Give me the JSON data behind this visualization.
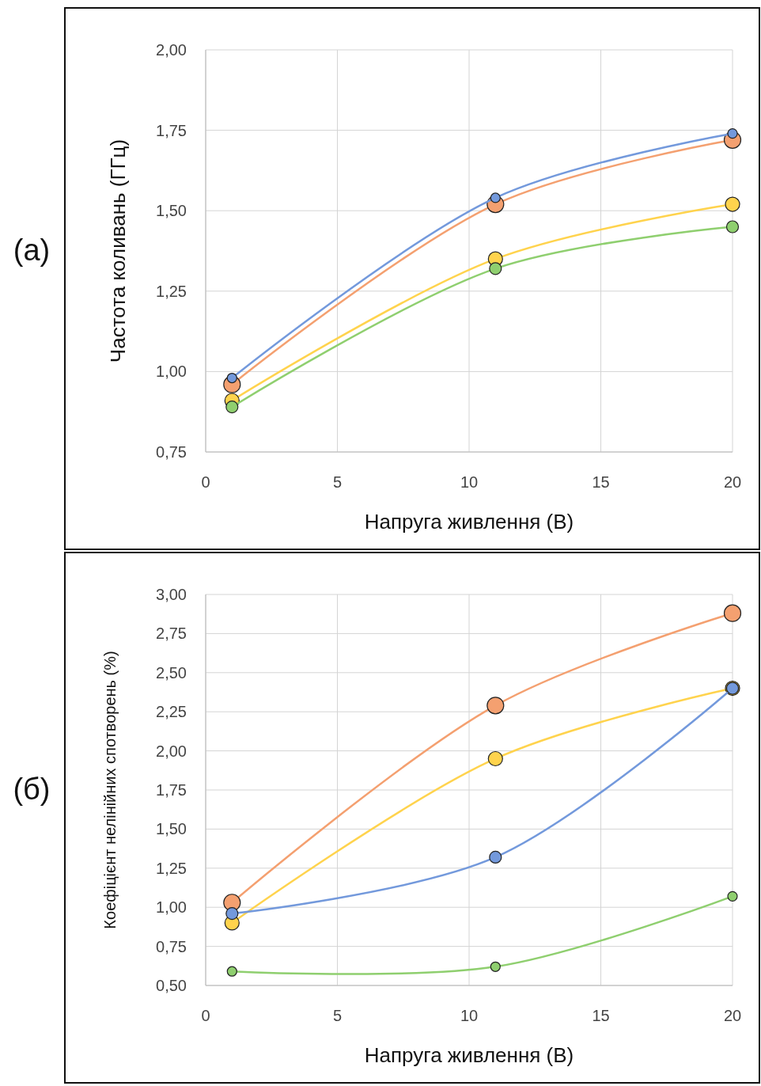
{
  "chart_data": [
    {
      "type": "line",
      "annotations": [
        "(а)"
      ],
      "xlabel": "Напруга живлення (В)",
      "ylabel": "Частота коливань (ГГц)",
      "x": [
        1,
        11,
        20
      ],
      "xlim": [
        0,
        20
      ],
      "xticks": [
        0,
        5,
        10,
        15,
        20
      ],
      "ylim": [
        0.75,
        2.0
      ],
      "yticks": [
        {
          "value": 0.75,
          "label": "0,75"
        },
        {
          "value": 1.0,
          "label": "1,00"
        },
        {
          "value": 1.25,
          "label": "1,25"
        },
        {
          "value": 1.5,
          "label": "1,50"
        },
        {
          "value": 1.75,
          "label": "1,75"
        },
        {
          "value": 2.0,
          "label": "2,00"
        }
      ],
      "grid": true,
      "marker": "circle",
      "line_style": "solid",
      "series": [
        {
          "color": "#f4a070",
          "values": [
            0.96,
            1.52,
            1.72
          ]
        },
        {
          "color": "#ffd34d",
          "values": [
            0.91,
            1.35,
            1.52
          ]
        },
        {
          "color": "#8fcf6f",
          "values": [
            0.89,
            1.32,
            1.45
          ]
        },
        {
          "color": "#7399dc",
          "values": [
            0.98,
            1.54,
            1.74
          ]
        }
      ]
    },
    {
      "type": "line",
      "annotations": [
        "(б)"
      ],
      "xlabel": "Напруга живлення (В)",
      "ylabel": "Коефіцієнт нелінійних спотворень (%)",
      "x": [
        1,
        11,
        20
      ],
      "xlim": [
        0,
        20
      ],
      "xticks": [
        0,
        5,
        10,
        15,
        20
      ],
      "ylim": [
        0.5,
        3.0
      ],
      "yticks": [
        {
          "value": 0.5,
          "label": "0,50"
        },
        {
          "value": 0.75,
          "label": "0,75"
        },
        {
          "value": 1.0,
          "label": "1,00"
        },
        {
          "value": 1.25,
          "label": "1,25"
        },
        {
          "value": 1.5,
          "label": "1,50"
        },
        {
          "value": 1.75,
          "label": "1,75"
        },
        {
          "value": 2.0,
          "label": "2,00"
        },
        {
          "value": 2.25,
          "label": "2,25"
        },
        {
          "value": 2.5,
          "label": "2,50"
        },
        {
          "value": 2.75,
          "label": "2,75"
        },
        {
          "value": 3.0,
          "label": "3,00"
        }
      ],
      "grid": true,
      "marker": "circle",
      "line_style": "solid",
      "series": [
        {
          "color": "#f4a070",
          "values": [
            1.03,
            2.29,
            2.88
          ]
        },
        {
          "color": "#ffd34d",
          "values": [
            0.9,
            1.95,
            2.4
          ]
        },
        {
          "color": "#7399dc",
          "values": [
            0.96,
            1.32,
            2.4
          ]
        },
        {
          "color": "#8fcf6f",
          "values": [
            0.59,
            0.62,
            1.07
          ]
        }
      ]
    }
  ]
}
